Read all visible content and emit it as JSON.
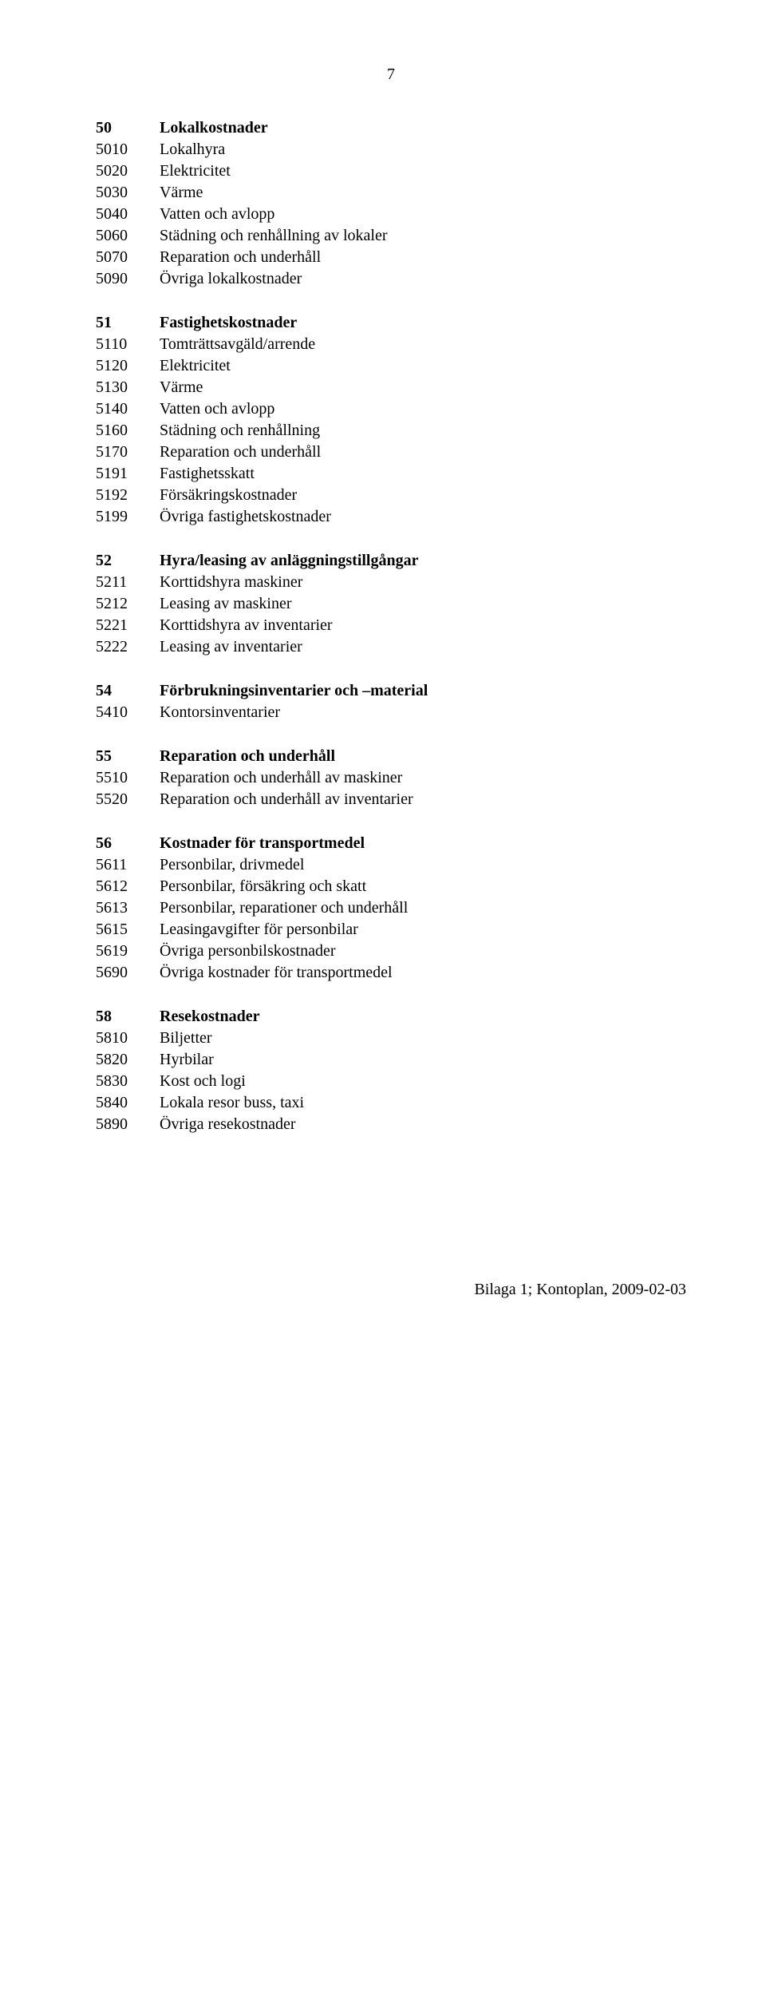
{
  "page_number": "7",
  "sections": [
    {
      "header": {
        "code": "50",
        "label": "Lokalkostnader"
      },
      "items": [
        {
          "code": "5010",
          "label": "Lokalhyra"
        },
        {
          "code": "5020",
          "label": "Elektricitet"
        },
        {
          "code": "5030",
          "label": "Värme"
        },
        {
          "code": "5040",
          "label": "Vatten och avlopp"
        },
        {
          "code": "5060",
          "label": "Städning och renhållning av lokaler"
        },
        {
          "code": "5070",
          "label": "Reparation och underhåll"
        },
        {
          "code": "5090",
          "label": "Övriga lokalkostnader"
        }
      ]
    },
    {
      "header": {
        "code": "51",
        "label": "Fastighetskostnader"
      },
      "items": [
        {
          "code": "5110",
          "label": "Tomträttsavgäld/arrende"
        },
        {
          "code": "5120",
          "label": "Elektricitet"
        },
        {
          "code": "5130",
          "label": "Värme"
        },
        {
          "code": "5140",
          "label": "Vatten och avlopp"
        },
        {
          "code": "5160",
          "label": "Städning och renhållning"
        },
        {
          "code": "5170",
          "label": "Reparation och underhåll"
        },
        {
          "code": "5191",
          "label": "Fastighetsskatt"
        },
        {
          "code": "5192",
          "label": "Försäkringskostnader"
        },
        {
          "code": "5199",
          "label": "Övriga fastighetskostnader"
        }
      ]
    },
    {
      "header": {
        "code": "52",
        "label": "Hyra/leasing av anläggningstillgångar"
      },
      "items": [
        {
          "code": "5211",
          "label": "Korttidshyra maskiner"
        },
        {
          "code": "5212",
          "label": "Leasing av maskiner"
        },
        {
          "code": "5221",
          "label": "Korttidshyra av inventarier"
        },
        {
          "code": "5222",
          "label": "Leasing av inventarier"
        }
      ]
    },
    {
      "header": {
        "code": "54",
        "label": "Förbrukningsinventarier och –material"
      },
      "items": [
        {
          "code": "5410",
          "label": "Kontorsinventarier"
        }
      ]
    },
    {
      "header": {
        "code": "55",
        "label": "Reparation och underhåll"
      },
      "items": [
        {
          "code": "5510",
          "label": "Reparation och underhåll av maskiner"
        },
        {
          "code": "5520",
          "label": "Reparation och underhåll av inventarier"
        }
      ]
    },
    {
      "header": {
        "code": "56",
        "label": "Kostnader för transportmedel"
      },
      "items": [
        {
          "code": "5611",
          "label": "Personbilar, drivmedel"
        },
        {
          "code": "5612",
          "label": "Personbilar, försäkring och skatt"
        },
        {
          "code": "5613",
          "label": "Personbilar, reparationer och underhåll"
        },
        {
          "code": "5615",
          "label": "Leasingavgifter för personbilar"
        },
        {
          "code": "5619",
          "label": "Övriga personbilskostnader"
        },
        {
          "code": "5690",
          "label": "Övriga kostnader för transportmedel"
        }
      ]
    },
    {
      "header": {
        "code": "58",
        "label": "Resekostnader"
      },
      "items": [
        {
          "code": "5810",
          "label": "Biljetter"
        },
        {
          "code": "5820",
          "label": "Hyrbilar"
        },
        {
          "code": "5830",
          "label": "Kost och logi"
        },
        {
          "code": "5840",
          "label": "Lokala resor buss, taxi"
        },
        {
          "code": "5890",
          "label": "Övriga resekostnader"
        }
      ]
    }
  ],
  "footer": "Bilaga 1; Kontoplan, 2009-02-03"
}
